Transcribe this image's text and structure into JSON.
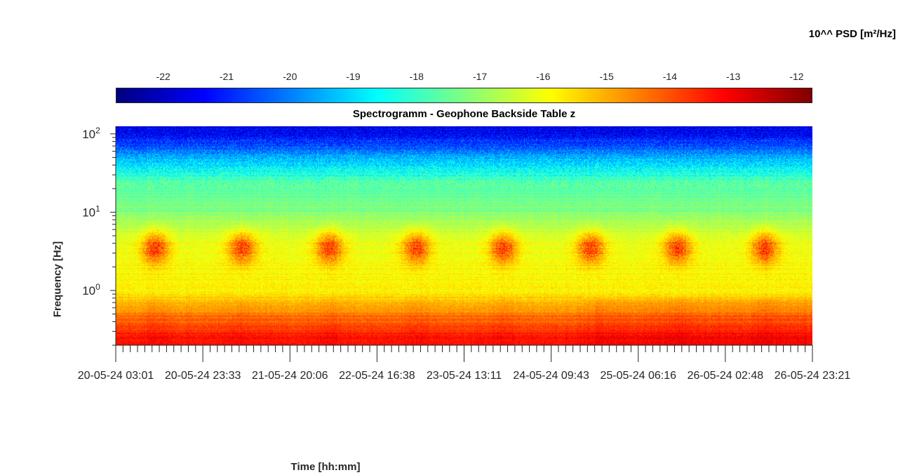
{
  "colorbar": {
    "title": "10^^ PSD [m²/Hz]",
    "ticks": [
      "-22",
      "-21",
      "-20",
      "-19",
      "-18",
      "-17",
      "-16",
      "-15",
      "-14",
      "-13",
      "-12"
    ],
    "tick_values": [
      -22,
      -21,
      -20,
      -19,
      -18,
      -17,
      -16,
      -15,
      -14,
      -13,
      -12
    ],
    "range": [
      -22.75,
      -11.75
    ],
    "colormap": "jet"
  },
  "chart_data": {
    "type": "heatmap",
    "title": "Spectrogramm - Geophone Backside Table z",
    "xlabel": "Time [hh:mm]",
    "ylabel": "Frequency [Hz]",
    "y_scale": "log",
    "ylim": [
      0.2,
      125
    ],
    "yticks": [
      {
        "value": 1,
        "label_base": "10",
        "label_exp": "0"
      },
      {
        "value": 10,
        "label_base": "10",
        "label_exp": "1"
      },
      {
        "value": 100,
        "label_base": "10",
        "label_exp": "2"
      }
    ],
    "x_tick_labels": [
      "20-05-24  03:01",
      "20-05-24  23:33",
      "21-05-24  20:06",
      "22-05-24  16:38",
      "23-05-24  13:11",
      "24-05-24  09:43",
      "25-05-24  06:16",
      "26-05-24  02:48",
      "26-05-24  23:21"
    ],
    "approx_log10_psd_by_frequency": [
      {
        "frequency_hz": 100,
        "value": -21.5
      },
      {
        "frequency_hz": 50,
        "value": -19.5
      },
      {
        "frequency_hz": 25,
        "value": -17.8
      },
      {
        "frequency_hz": 10,
        "value": -17.2
      },
      {
        "frequency_hz": 4,
        "value": -16.0
      },
      {
        "frequency_hz": 1,
        "value": -15.8
      },
      {
        "frequency_hz": 0.5,
        "value": -14.5
      },
      {
        "frequency_hz": 0.25,
        "value": -13.3
      }
    ],
    "activity_bursts_hz_range": [
      2,
      6
    ],
    "activity_burst_peak_value": -13.5,
    "grid": false,
    "legend": "colorbar top"
  }
}
